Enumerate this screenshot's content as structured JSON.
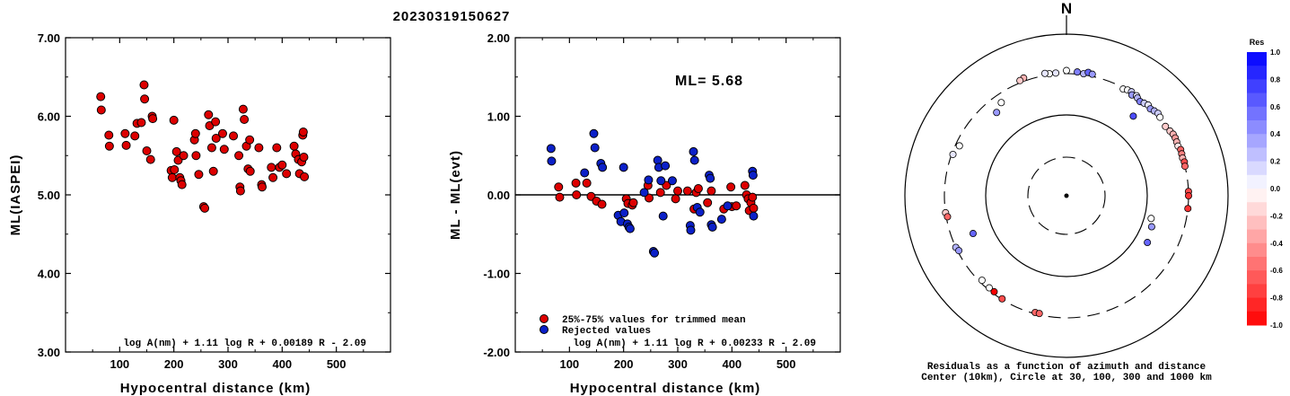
{
  "title": "20230319150627",
  "colors": {
    "accepted": "#dd0000",
    "rejected": "#0b20c8",
    "frame": "#000000"
  },
  "chart_data": [
    {
      "type": "scatter",
      "id": "ml_vs_distance",
      "xlabel": "Hypocentral distance (km)",
      "ylabel": "ML(IASPEI)",
      "xlim": [
        0,
        600
      ],
      "ylim": [
        3.0,
        7.0
      ],
      "xticks": [
        "100",
        "200",
        "300",
        "400",
        "500"
      ],
      "yticks": [
        "3.00",
        "4.00",
        "5.00",
        "6.00",
        "7.00"
      ],
      "formula": "log A(nm) + 1.11 log R + 0.00189 R - 2.09",
      "points": [
        [
          65,
          6.25
        ],
        [
          66,
          6.08
        ],
        [
          80,
          5.76
        ],
        [
          81,
          5.62
        ],
        [
          110,
          5.78
        ],
        [
          112,
          5.63
        ],
        [
          128,
          5.75
        ],
        [
          132,
          5.91
        ],
        [
          140,
          5.92
        ],
        [
          145,
          6.4
        ],
        [
          146,
          6.22
        ],
        [
          150,
          5.56
        ],
        [
          157,
          5.45
        ],
        [
          160,
          6.0
        ],
        [
          161,
          5.97
        ],
        [
          195,
          5.31
        ],
        [
          197,
          5.22
        ],
        [
          200,
          5.95
        ],
        [
          201,
          5.32
        ],
        [
          205,
          5.55
        ],
        [
          208,
          5.44
        ],
        [
          211,
          5.22
        ],
        [
          213,
          5.18
        ],
        [
          215,
          5.13
        ],
        [
          218,
          5.5
        ],
        [
          238,
          5.7
        ],
        [
          240,
          5.78
        ],
        [
          241,
          5.5
        ],
        [
          246,
          5.26
        ],
        [
          255,
          4.85
        ],
        [
          257,
          4.83
        ],
        [
          264,
          6.02
        ],
        [
          266,
          5.88
        ],
        [
          270,
          5.6
        ],
        [
          273,
          5.3
        ],
        [
          277,
          5.93
        ],
        [
          278,
          5.72
        ],
        [
          290,
          5.78
        ],
        [
          293,
          5.58
        ],
        [
          310,
          5.75
        ],
        [
          320,
          5.5
        ],
        [
          322,
          5.1
        ],
        [
          323,
          5.05
        ],
        [
          328,
          6.09
        ],
        [
          330,
          5.96
        ],
        [
          334,
          5.62
        ],
        [
          337,
          5.33
        ],
        [
          340,
          5.7
        ],
        [
          341,
          5.3
        ],
        [
          357,
          5.6
        ],
        [
          362,
          5.13
        ],
        [
          363,
          5.1
        ],
        [
          380,
          5.35
        ],
        [
          383,
          5.22
        ],
        [
          390,
          5.6
        ],
        [
          395,
          5.35
        ],
        [
          400,
          5.38
        ],
        [
          408,
          5.27
        ],
        [
          422,
          5.62
        ],
        [
          425,
          5.52
        ],
        [
          430,
          5.45
        ],
        [
          432,
          5.27
        ],
        [
          436,
          5.42
        ],
        [
          438,
          5.76
        ],
        [
          439,
          5.8
        ],
        [
          440,
          5.48
        ],
        [
          441,
          5.23
        ]
      ]
    },
    {
      "type": "scatter",
      "id": "residual_vs_distance",
      "xlabel": "Hypocentral distance (km)",
      "ylabel": "ML - ML(evt)",
      "xlim": [
        0,
        600
      ],
      "ylim": [
        -2.0,
        2.0
      ],
      "xticks": [
        "100",
        "200",
        "300",
        "400",
        "500"
      ],
      "yticks": [
        "-2.00",
        "-1.00",
        "0.00",
        "1.00",
        "2.00"
      ],
      "ml_label": "ML= 5.68",
      "formula": "log A(nm) + 1.11 log R + 0.00233 R - 2.09",
      "legend": [
        "25%-75% values for trimmed mean",
        "Rejected values"
      ],
      "series": [
        {
          "name": "25%-75% values for trimmed mean",
          "color": "#dd0000",
          "points": [
            [
              80,
              0.1
            ],
            [
              82,
              -0.03
            ],
            [
              112,
              0.15
            ],
            [
              113,
              0.0
            ],
            [
              132,
              0.15
            ],
            [
              140,
              -0.02
            ],
            [
              150,
              -0.08
            ],
            [
              160,
              -0.12
            ],
            [
              205,
              -0.05
            ],
            [
              208,
              -0.11
            ],
            [
              216,
              -0.13
            ],
            [
              218,
              -0.1
            ],
            [
              245,
              0.12
            ],
            [
              247,
              -0.04
            ],
            [
              268,
              0.03
            ],
            [
              279,
              0.12
            ],
            [
              296,
              -0.05
            ],
            [
              300,
              0.05
            ],
            [
              318,
              0.05
            ],
            [
              330,
              -0.18
            ],
            [
              334,
              0.03
            ],
            [
              338,
              0.08
            ],
            [
              355,
              -0.1
            ],
            [
              362,
              0.05
            ],
            [
              385,
              -0.18
            ],
            [
              398,
              0.1
            ],
            [
              400,
              -0.15
            ],
            [
              408,
              -0.14
            ],
            [
              424,
              0.12
            ],
            [
              427,
              0.0
            ],
            [
              430,
              -0.05
            ],
            [
              432,
              -0.2
            ],
            [
              435,
              -0.1
            ],
            [
              438,
              -0.03
            ],
            [
              440,
              -0.17
            ]
          ]
        },
        {
          "name": "Rejected values",
          "color": "#0b20c8",
          "points": [
            [
              66,
              0.59
            ],
            [
              67,
              0.43
            ],
            [
              128,
              0.28
            ],
            [
              145,
              0.78
            ],
            [
              147,
              0.6
            ],
            [
              158,
              0.4
            ],
            [
              161,
              0.35
            ],
            [
              190,
              -0.26
            ],
            [
              195,
              -0.34
            ],
            [
              200,
              0.35
            ],
            [
              201,
              -0.23
            ],
            [
              207,
              -0.37
            ],
            [
              210,
              -0.41
            ],
            [
              212,
              -0.43
            ],
            [
              238,
              0.03
            ],
            [
              246,
              0.19
            ],
            [
              255,
              -0.72
            ],
            [
              257,
              -0.74
            ],
            [
              263,
              0.44
            ],
            [
              265,
              0.35
            ],
            [
              269,
              0.18
            ],
            [
              273,
              -0.27
            ],
            [
              277,
              0.37
            ],
            [
              290,
              0.18
            ],
            [
              323,
              -0.39
            ],
            [
              324,
              -0.45
            ],
            [
              329,
              0.55
            ],
            [
              331,
              0.44
            ],
            [
              336,
              -0.16
            ],
            [
              341,
              -0.22
            ],
            [
              358,
              0.25
            ],
            [
              360,
              0.21
            ],
            [
              362,
              -0.38
            ],
            [
              364,
              -0.41
            ],
            [
              381,
              -0.31
            ],
            [
              392,
              -0.14
            ],
            [
              438,
              0.3
            ],
            [
              439,
              0.25
            ],
            [
              440,
              -0.27
            ]
          ]
        }
      ]
    },
    {
      "type": "scatter",
      "id": "residual_azimuth_polar",
      "north_label": "N",
      "caption_lines": [
        "Residuals as a function of azimuth and distance",
        "Center (10km), Circle at 30, 100, 300 and 1000 km"
      ],
      "colorbar": {
        "label": "Res",
        "ticks": [
          "1.0",
          "0.8",
          "0.6",
          "0.4",
          "0.2",
          "0.0",
          "-0.2",
          "-0.4",
          "-0.6",
          "-0.8",
          "-1.0"
        ],
        "range": [
          -1.0,
          1.0
        ]
      },
      "points_az_dist_res": [
        [
          0,
          330,
          0.0
        ],
        [
          5,
          320,
          0.5
        ],
        [
          8,
          310,
          0.3
        ],
        [
          10,
          330,
          0.6
        ],
        [
          12,
          320,
          0.4
        ],
        [
          -5,
          310,
          0.1
        ],
        [
          -8,
          310,
          0.0
        ],
        [
          -10,
          320,
          0.1
        ],
        [
          -20,
          330,
          -0.3
        ],
        [
          -22,
          320,
          -0.2
        ],
        [
          -35,
          240,
          0.0
        ],
        [
          -40,
          210,
          0.4
        ],
        [
          -65,
          270,
          0.0
        ],
        [
          -70,
          290,
          0.1
        ],
        [
          -98,
          300,
          -0.2
        ],
        [
          -100,
          290,
          -0.6
        ],
        [
          -115,
          300,
          0.3
        ],
        [
          -117,
          290,
          0.4
        ],
        [
          -135,
          280,
          0.0
        ],
        [
          -140,
          285,
          0.0
        ],
        [
          -143,
          285,
          -1.0
        ],
        [
          -148,
          295,
          -0.7
        ],
        [
          -165,
          290,
          -0.6
        ],
        [
          -167,
          290,
          -0.6
        ],
        [
          28,
          290,
          0.0
        ],
        [
          30,
          300,
          0.0
        ],
        [
          32,
          305,
          0.2
        ],
        [
          33,
          285,
          0.4
        ],
        [
          35,
          300,
          0.1
        ],
        [
          36,
          290,
          0.3
        ],
        [
          38,
          280,
          0.5
        ],
        [
          40,
          290,
          0.2
        ],
        [
          42,
          300,
          0.1
        ],
        [
          44,
          290,
          0.4
        ],
        [
          46,
          300,
          0.3
        ],
        [
          48,
          310,
          0.2
        ],
        [
          50,
          300,
          0.0
        ],
        [
          55,
          290,
          -0.2
        ],
        [
          58,
          300,
          -0.2
        ],
        [
          60,
          310,
          -0.3
        ],
        [
          62,
          310,
          -0.4
        ],
        [
          64,
          305,
          -0.3
        ],
        [
          66,
          300,
          -0.1
        ],
        [
          68,
          310,
          -0.6
        ],
        [
          70,
          305,
          -0.5
        ],
        [
          72,
          300,
          -0.3
        ],
        [
          74,
          305,
          -0.7
        ],
        [
          76,
          300,
          -0.6
        ],
        [
          88,
          300,
          -0.7
        ],
        [
          90,
          300,
          -0.8
        ],
        [
          96,
          300,
          -0.8
        ],
        [
          40,
          185,
          0.7
        ],
        [
          105,
          120,
          0.0
        ],
        [
          110,
          130,
          0.4
        ],
        [
          120,
          140,
          0.6
        ],
        [
          -112,
          170,
          0.6
        ]
      ]
    }
  ]
}
